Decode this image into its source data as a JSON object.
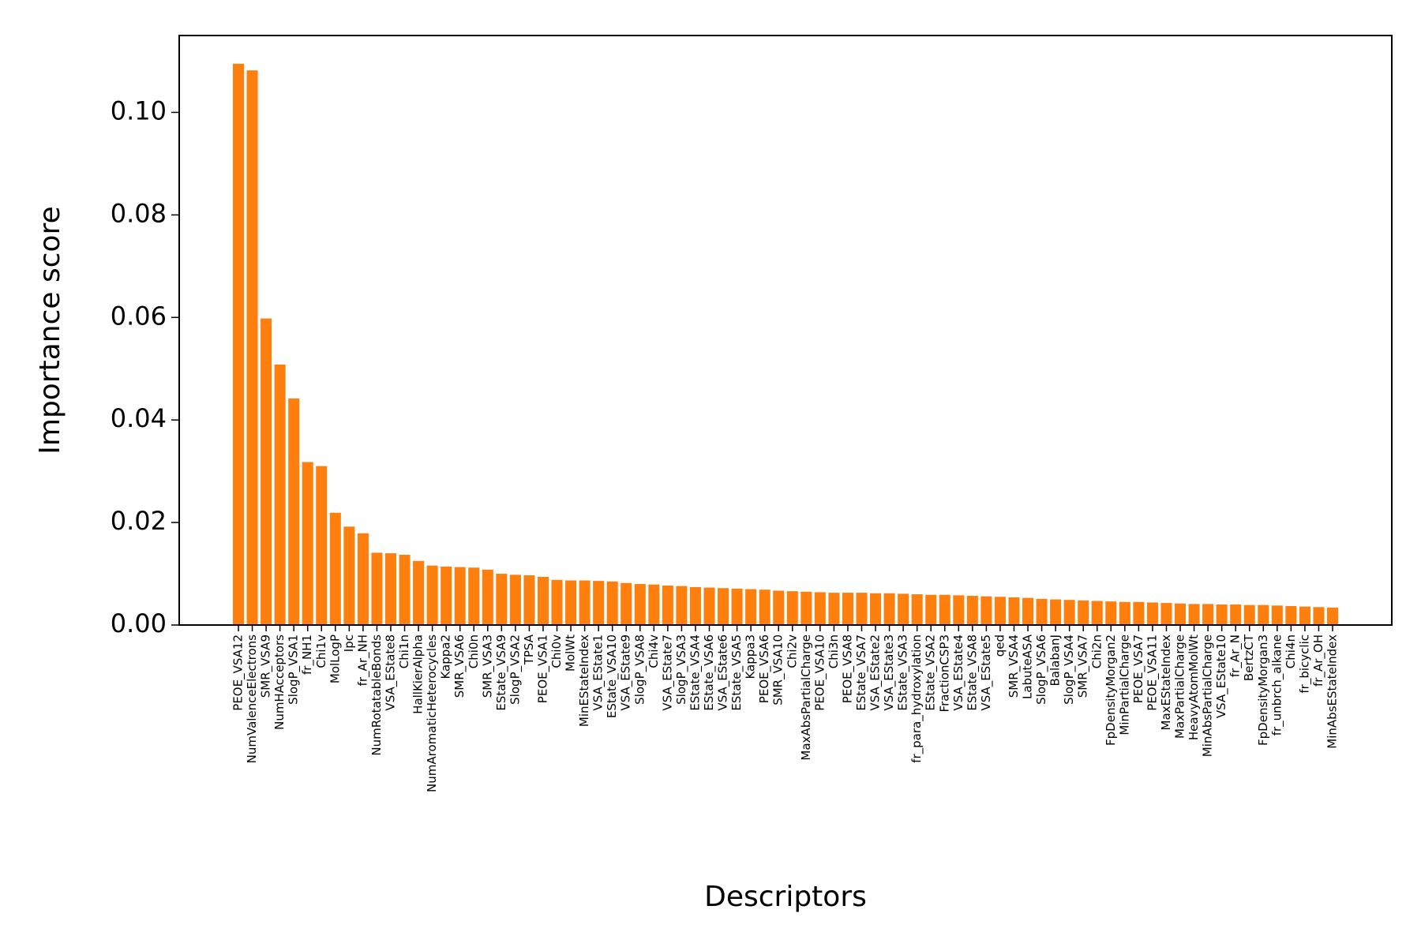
{
  "chart_data": {
    "type": "bar",
    "title": "",
    "xlabel": "Descriptors",
    "ylabel": "Importance score",
    "ylim": [
      0,
      0.115
    ],
    "yticks": [
      "0.00",
      "0.02",
      "0.04",
      "0.06",
      "0.08",
      "0.10"
    ],
    "ytick_values": [
      0,
      0.02,
      0.04,
      0.06,
      0.08,
      0.1
    ],
    "grid": false,
    "bar_color": "#ff7f0e",
    "categories": [
      "PEOE_VSA12",
      "NumValenceElectrons",
      "SMR_VSA9",
      "NumHAcceptors",
      "SlogP_VSA1",
      "fr_NH1",
      "Chi1v",
      "MolLogP",
      "Ipc",
      "fr_Ar_NH",
      "NumRotatableBonds",
      "VSA_EState8",
      "Chi1n",
      "HallKierAlpha",
      "NumAromaticHeterocycles",
      "Kappa2",
      "SMR_VSA6",
      "Chi0n",
      "SMR_VSA3",
      "EState_VSA9",
      "SlogP_VSA2",
      "TPSA",
      "PEOE_VSA1",
      "Chi0v",
      "MolWt",
      "MinEStateIndex",
      "VSA_EState1",
      "EState_VSA10",
      "VSA_EState9",
      "SlogP_VSA8",
      "Chi4v",
      "VSA_EState7",
      "SlogP_VSA3",
      "EState_VSA4",
      "EState_VSA6",
      "VSA_EState6",
      "EState_VSA5",
      "Kappa3",
      "PEOE_VSA6",
      "SMR_VSA10",
      "Chi2v",
      "MaxAbsPartialCharge",
      "PEOE_VSA10",
      "Chi3n",
      "PEOE_VSA8",
      "EState_VSA7",
      "VSA_EState2",
      "VSA_EState3",
      "EState_VSA3",
      "fr_para_hydroxylation",
      "EState_VSA2",
      "FractionCSP3",
      "VSA_EState4",
      "EState_VSA8",
      "VSA_EState5",
      "qed",
      "SMR_VSA4",
      "LabuteASA",
      "SlogP_VSA6",
      "BalabanJ",
      "SlogP_VSA4",
      "SMR_VSA7",
      "Chi2n",
      "FpDensityMorgan2",
      "MinPartialCharge",
      "PEOE_VSA7",
      "PEOE_VSA11",
      "MaxEStateIndex",
      "MaxPartialCharge",
      "HeavyAtomMolWt",
      "MinAbsPartialCharge",
      "VSA_EState10",
      "fr_Ar_N",
      "BertzCT",
      "FpDensityMorgan3",
      "fr_unbrch_alkane",
      "Chi4n",
      "fr_bicyclic",
      "fr_Ar_OH",
      "MinAbsEStateIndex"
    ],
    "values": [
      0.1095,
      0.1082,
      0.0598,
      0.0508,
      0.0442,
      0.0318,
      0.031,
      0.0219,
      0.0192,
      0.0179,
      0.0141,
      0.014,
      0.0137,
      0.0125,
      0.0116,
      0.0114,
      0.0113,
      0.0112,
      0.0108,
      0.01,
      0.0098,
      0.0097,
      0.0094,
      0.0088,
      0.0087,
      0.0087,
      0.0086,
      0.0085,
      0.0082,
      0.008,
      0.0079,
      0.0077,
      0.0076,
      0.0074,
      0.0073,
      0.0072,
      0.0071,
      0.007,
      0.0069,
      0.0067,
      0.0066,
      0.0065,
      0.0064,
      0.0063,
      0.0063,
      0.0063,
      0.0062,
      0.0062,
      0.0061,
      0.006,
      0.0059,
      0.0059,
      0.0058,
      0.0057,
      0.0056,
      0.0055,
      0.0054,
      0.0053,
      0.0051,
      0.005,
      0.0049,
      0.0048,
      0.0047,
      0.0046,
      0.0045,
      0.0045,
      0.0044,
      0.0043,
      0.0042,
      0.0041,
      0.0041,
      0.004,
      0.004,
      0.0039,
      0.0039,
      0.0038,
      0.0037,
      0.0036,
      0.0035,
      0.0034
    ]
  }
}
